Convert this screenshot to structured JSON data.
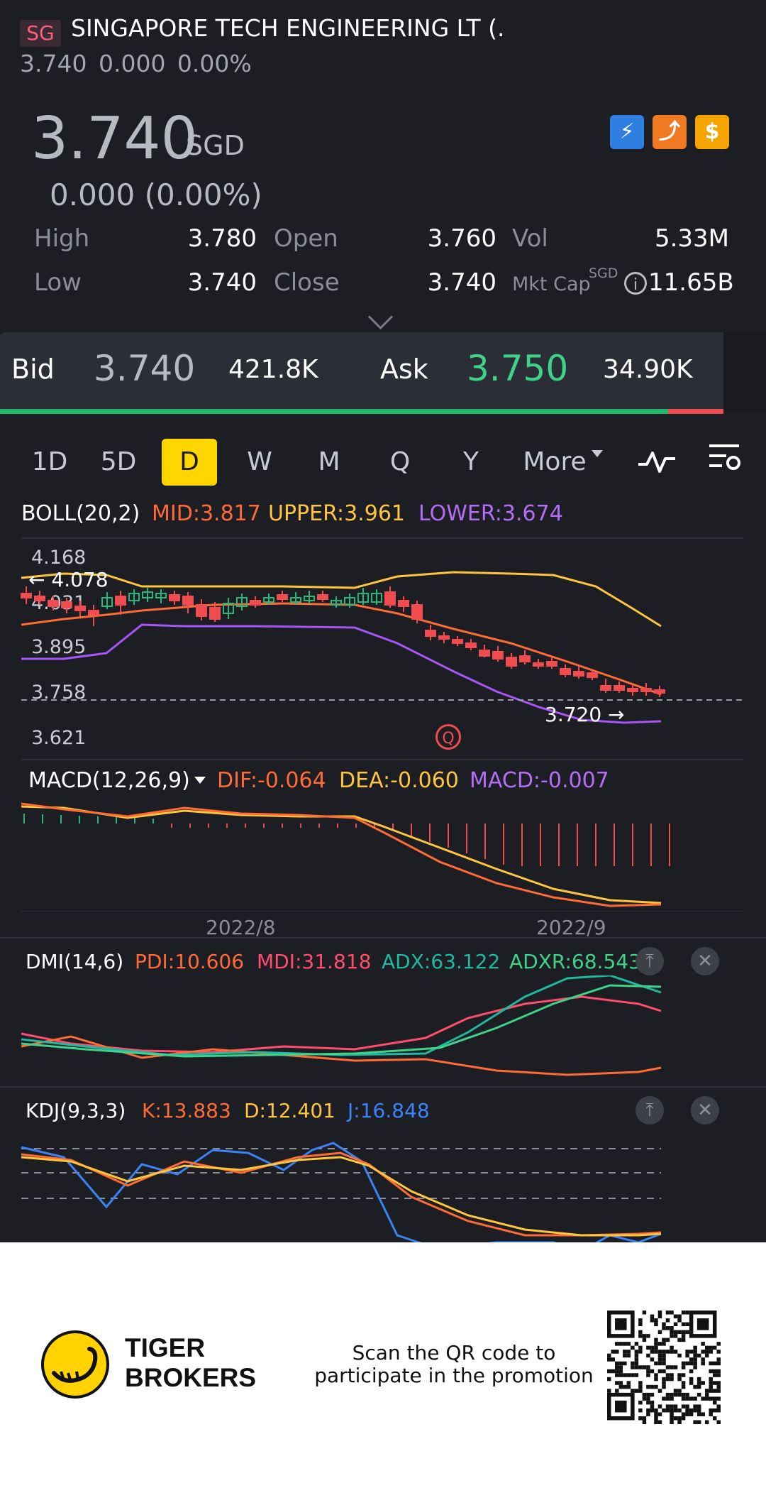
{
  "header": {
    "market_badge": "SG",
    "stock_name": "SINGAPORE TECH ENGINEERING LT (.",
    "sub_quote": "3.740 0.000 0.00%",
    "price": "3.740",
    "currency": "SGD",
    "change": "0.000 (0.00%)",
    "badges": [
      {
        "icon": "lightning-icon",
        "color": "#2f7fe0",
        "text": "⚡"
      },
      {
        "icon": "chart-arrow-icon",
        "color": "#f07a22",
        "text": "⤴"
      },
      {
        "icon": "dollar-icon",
        "color": "#f5a400",
        "text": "$"
      }
    ]
  },
  "stats": {
    "high_label": "High",
    "high": "3.780",
    "low_label": "Low",
    "low": "3.740",
    "open_label": "Open",
    "open": "3.760",
    "close_label": "Close",
    "close": "3.740",
    "vol_label": "Vol",
    "vol": "5.33M",
    "mktcap_label": "Mkt Cap",
    "mktcap_currency": "SGD",
    "mktcap": "11.65B"
  },
  "bidask": {
    "bid_label": "Bid",
    "bid_price": "3.740",
    "bid_size": "421.8K",
    "ask_label": "Ask",
    "ask_price": "3.750",
    "ask_size": "34.90K",
    "bid_share": 0.923
  },
  "tabs": [
    "1D",
    "5D",
    "D",
    "W",
    "M",
    "Q",
    "Y",
    "More"
  ],
  "active_tab": "D",
  "boll": {
    "title": "BOLL(20,2)",
    "mid": "MID:3.817",
    "upper": "UPPER:3.961",
    "lower": "LOWER:3.674",
    "y_labels": [
      "4.168",
      "4.031",
      "3.895",
      "3.758",
      "3.621"
    ],
    "high_marker": "4.078",
    "low_marker": "3.720",
    "q_marker": "Q",
    "colors": {
      "mid": "#ff6b35",
      "upper": "#ffc53d",
      "lower": "#a855f7",
      "up": "#26b87a",
      "down": "#f04b4f"
    }
  },
  "macd": {
    "title": "MACD(12,26,9)",
    "dif": "DIF:-0.064",
    "dea": "DEA:-0.060",
    "macd": "MACD:-0.007"
  },
  "dates": [
    "2022/8",
    "2022/9"
  ],
  "dmi": {
    "title": "DMI(14,6)",
    "pdi": "PDI:10.606",
    "mdi": "MDI:31.818",
    "adx": "ADX:63.122",
    "adxr": "ADXR:68.543"
  },
  "kdj": {
    "title": "KDJ(9,3,3)",
    "k": "K:13.883",
    "d": "D:12.401",
    "j": "J:16.848"
  },
  "footer": {
    "brand_line1": "TIGER",
    "brand_line2": "BROKERS",
    "promo_line1": "Scan the QR code to",
    "promo_line2": "participate in the promotion"
  }
}
